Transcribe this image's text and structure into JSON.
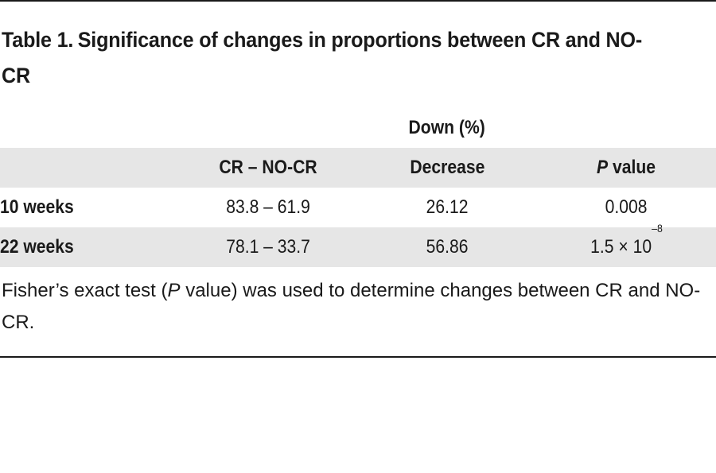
{
  "table": {
    "label": "Table 1.",
    "title": "Significance of changes in proportions between CR and NO-CR",
    "group_header": "Down (%)",
    "columns": {
      "row_label": "",
      "comparison": "CR – NO-CR",
      "decrease": "Decrease",
      "p_value_italic": "P",
      "p_value_rest": " value"
    },
    "rows": [
      {
        "label": "10 weeks",
        "comparison": "83.8 – 61.9",
        "decrease": "26.12",
        "p_value": "0.008",
        "p_value_exponent": ""
      },
      {
        "label": "22 weeks",
        "comparison": "78.1 – 33.7",
        "decrease": "56.86",
        "p_value": "1.5 × 10",
        "p_value_exponent": "–8"
      }
    ],
    "footnote": {
      "part1": "Fisher’s exact test (",
      "italic": "P",
      "part2": " value) was used to determine changes between CR and NO-CR."
    }
  }
}
